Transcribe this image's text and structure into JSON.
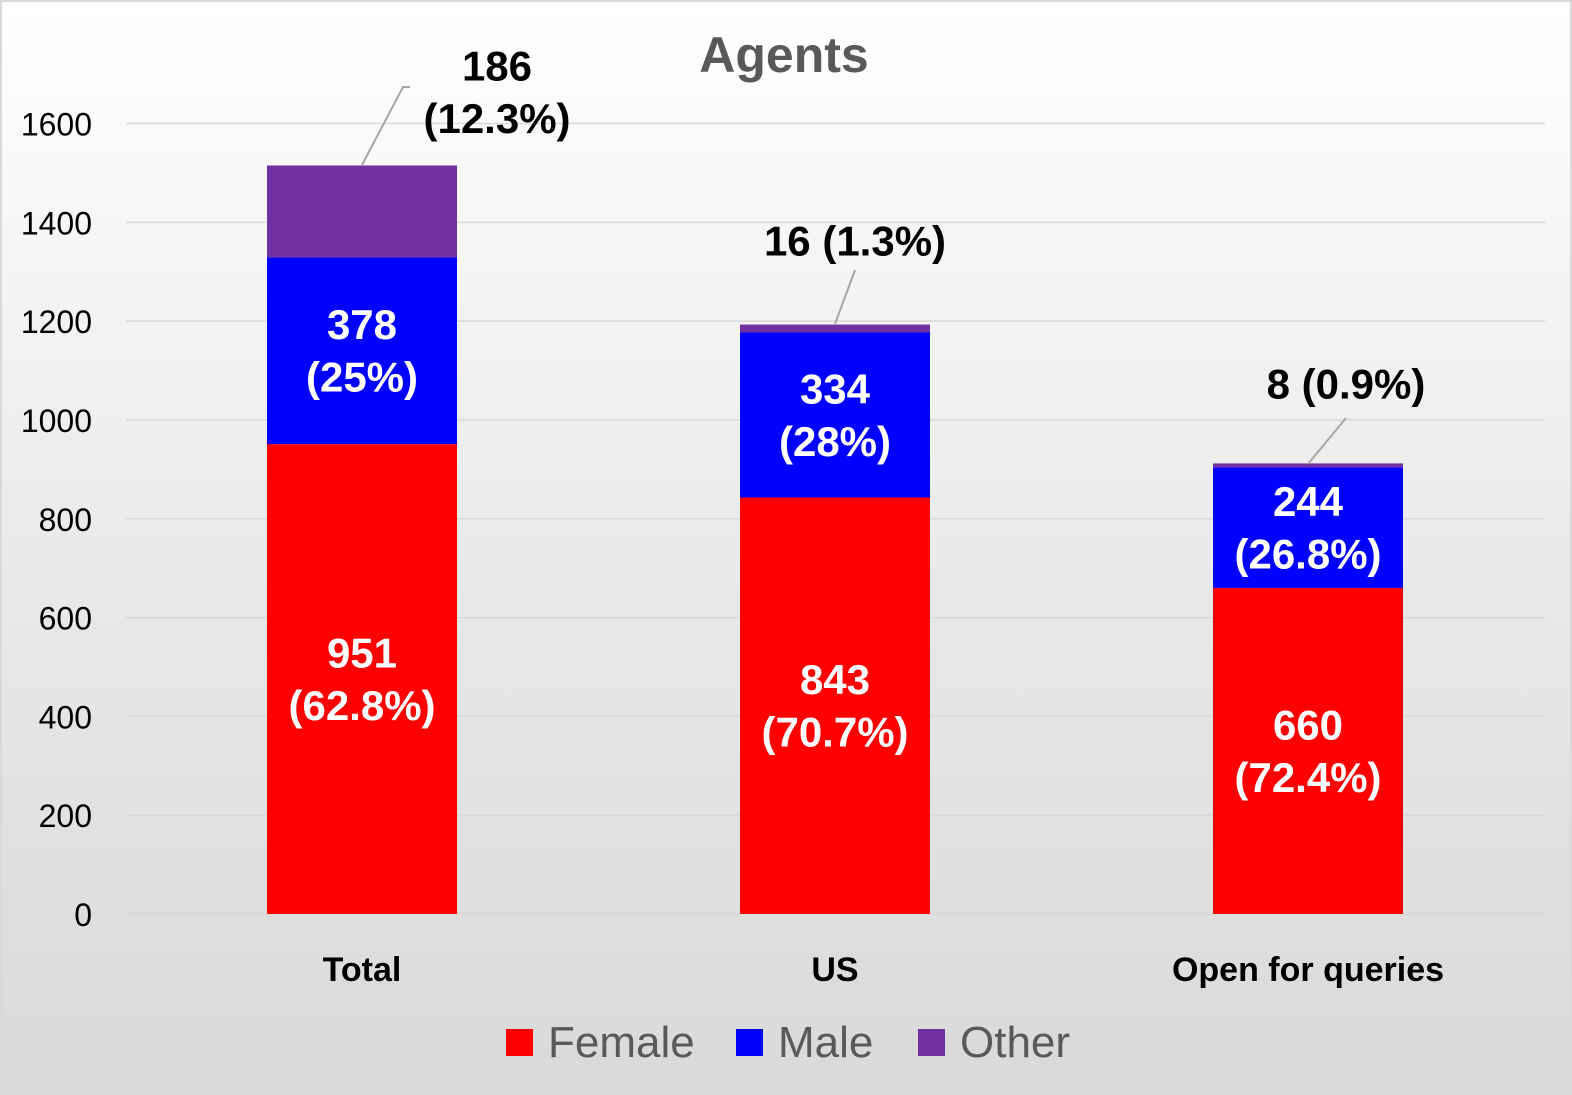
{
  "chart_data": {
    "type": "bar",
    "stacked": true,
    "title": "Agents",
    "categories": [
      "Total",
      "US",
      "Open for queries"
    ],
    "series": [
      {
        "name": "Female",
        "color": "#ff0000",
        "values": [
          951,
          843,
          660
        ],
        "labels": [
          "951\n(62.8%)",
          "843\n(70.7%)",
          "660\n(72.4%)"
        ]
      },
      {
        "name": "Male",
        "color": "#0000ff",
        "values": [
          378,
          334,
          244
        ],
        "labels": [
          "378\n(25%)",
          "334\n(28%)",
          "244\n(26.8%)"
        ]
      },
      {
        "name": "Other",
        "color": "#7030a0",
        "values": [
          186,
          16,
          8
        ],
        "labels": [
          "186\n(12.3%)",
          "16 (1.3%)",
          "8 (0.9%)"
        ]
      }
    ],
    "yticks": [
      "0",
      "200",
      "400",
      "600",
      "800",
      "1000",
      "1200",
      "1400",
      "1600"
    ],
    "ylim": [
      0,
      1600
    ],
    "grid": true,
    "legend": "bottom"
  }
}
